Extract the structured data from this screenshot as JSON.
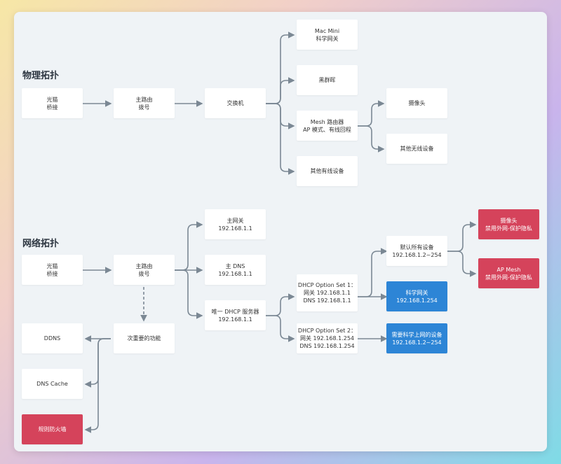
{
  "colors": {
    "line": "#7b8894",
    "red": "#d5435b",
    "blue": "#2d85d6",
    "panel": "#eff3f6"
  },
  "physical": {
    "title": "物理拓扑",
    "nodes": {
      "modem": [
        "光猫",
        "桥接"
      ],
      "router": [
        "主路由",
        "拨号"
      ],
      "switch": [
        "交换机"
      ],
      "macmini": [
        "Mac Mini",
        "科学网关"
      ],
      "nas": [
        "黑群晖"
      ],
      "mesh": [
        "Mesh 路由器",
        "AP 模式、有线回程"
      ],
      "wired": [
        "其他有线设备"
      ],
      "camera": [
        "摄像头"
      ],
      "wireless": [
        "其他无线设备"
      ]
    }
  },
  "network": {
    "title": "网络拓扑",
    "nodes": {
      "modem": [
        "光猫",
        "桥接"
      ],
      "router": [
        "主路由",
        "拨号"
      ],
      "gateway": [
        "主网关",
        "192.168.1.1"
      ],
      "dns": [
        "主 DNS",
        "192.168.1.1"
      ],
      "dhcp": [
        "唯一 DHCP 服务器",
        "192.168.1.1"
      ],
      "opt1": [
        "DHCP Option Set 1：",
        "网关 192.168.1.1",
        "DNS 192.168.1.1"
      ],
      "opt2": [
        "DHCP Option Set 2：",
        "网关 192.168.1.254",
        "DNS 192.168.1.254"
      ],
      "default": [
        "默认所有设备",
        "192.168.1.2~254"
      ],
      "sci_gw": [
        "科学网关",
        "192.168.1.254"
      ],
      "sci_dev": [
        "需要科学上网的设备",
        "192.168.1.2~254"
      ],
      "cam": [
        "摄像头",
        "禁用外网-保护隐私"
      ],
      "apmesh": [
        "AP Mesh",
        "禁用外网-保护隐私"
      ],
      "secondary": [
        "次重要的功能"
      ],
      "ddns": [
        "DDNS"
      ],
      "dnscache": [
        "DNS Cache"
      ],
      "firewall": [
        "规则防火墙"
      ]
    }
  }
}
